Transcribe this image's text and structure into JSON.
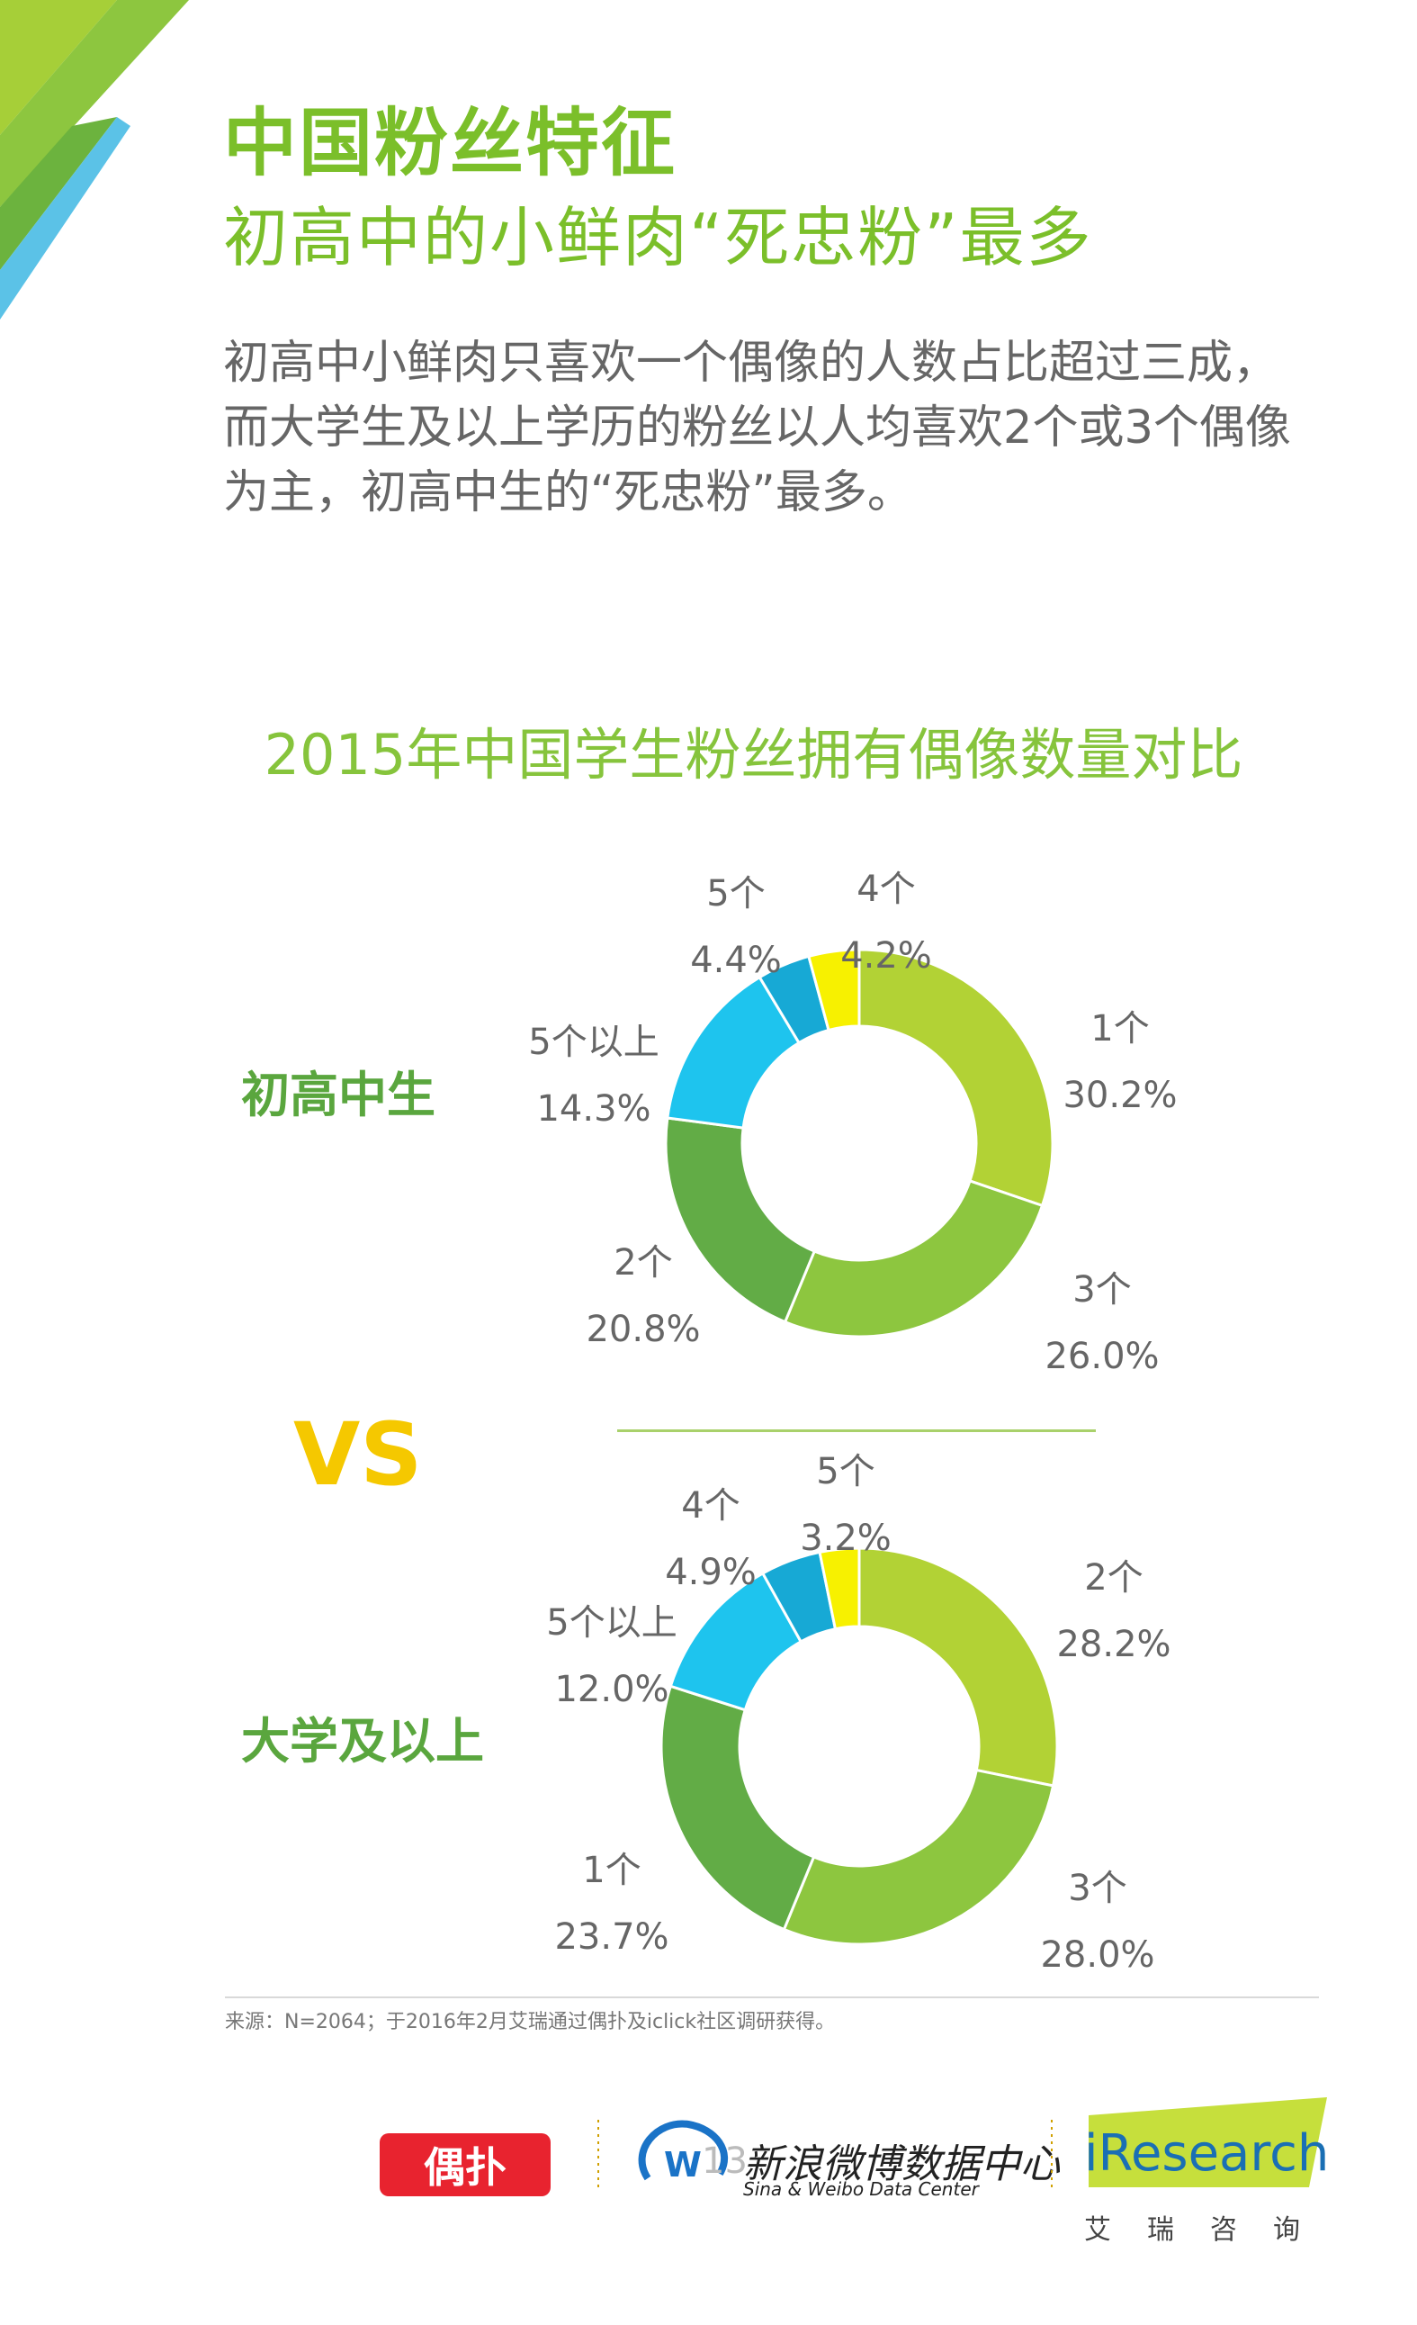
{
  "header": {
    "title": "中国粉丝特征",
    "subtitle": "初高中的小鲜肉“死忠粉”最多"
  },
  "intro_text": "初高中小鲜肉只喜欢一个偶像的人数占比超过三成，而大学生及以上学历的粉丝以人均喜欢2个或3个偶像为主，初高中生的“死忠粉”最多。",
  "chart_title": "2015年中国学生粉丝拥有偶像数量对比",
  "vs_text": "VS",
  "chart_data": [
    {
      "type": "pie",
      "donut": true,
      "group_label": "初高中生",
      "slices": [
        {
          "label": "1个",
          "value": 30.2,
          "value_text": "30.2%",
          "color": "#b2d235"
        },
        {
          "label": "3个",
          "value": 26.0,
          "value_text": "26.0%",
          "color": "#8dc63f"
        },
        {
          "label": "2个",
          "value": 20.8,
          "value_text": "20.8%",
          "color": "#62ac46"
        },
        {
          "label": "5个以上",
          "value": 14.3,
          "value_text": "14.3%",
          "color": "#1ec4ee"
        },
        {
          "label": "5个",
          "value": 4.4,
          "value_text": "4.4%",
          "color": "#17a9d5"
        },
        {
          "label": "4个",
          "value": 4.2,
          "value_text": "4.2%",
          "color": "#f7f100"
        }
      ]
    },
    {
      "type": "pie",
      "donut": true,
      "group_label": "大学及以上",
      "slices": [
        {
          "label": "2个",
          "value": 28.2,
          "value_text": "28.2%",
          "color": "#b2d235"
        },
        {
          "label": "3个",
          "value": 28.0,
          "value_text": "28.0%",
          "color": "#8dc63f"
        },
        {
          "label": "1个",
          "value": 23.7,
          "value_text": "23.7%",
          "color": "#62ac46"
        },
        {
          "label": "5个以上",
          "value": 12.0,
          "value_text": "12.0%",
          "color": "#1ec4ee"
        },
        {
          "label": "4个",
          "value": 4.9,
          "value_text": "4.9%",
          "color": "#17a9d5"
        },
        {
          "label": "5个",
          "value": 3.2,
          "value_text": "3.2%",
          "color": "#f7f100"
        }
      ]
    }
  ],
  "source_note": "来源：N=2064；于2016年2月艾瑞通过偶扑及iclick社区调研获得。",
  "footer": {
    "oupu_logo": "偶扑",
    "weibo_name": "新浪微博数据中心",
    "weibo_name_en": "Sina & Weibo Data Center",
    "iresearch_logo": "iResearch",
    "iresearch_cn": "艾瑞咨询",
    "page_number": "13"
  }
}
